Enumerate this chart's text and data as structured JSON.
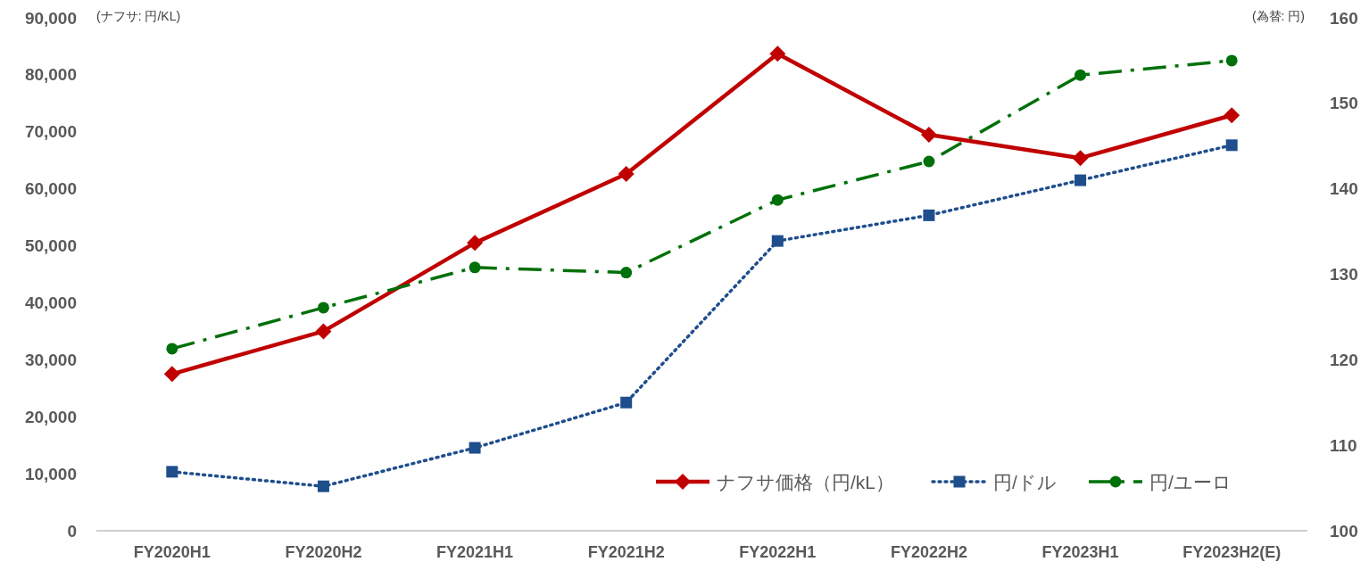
{
  "chart_data": {
    "type": "line",
    "categories": [
      "FY2020H1",
      "FY2020H2",
      "FY2021H1",
      "FY2021H2",
      "FY2022H1",
      "FY2022H2",
      "FY2023H1",
      "FY2023H2(E)"
    ],
    "ylabel": "(ナフサ: 円/KL)",
    "y2label": "(為替: 円)",
    "ylim": [
      0,
      90000
    ],
    "yticks": [
      {
        "value": 0,
        "label": "0"
      },
      {
        "value": 10000,
        "label": "10,000"
      },
      {
        "value": 20000,
        "label": "20,000"
      },
      {
        "value": 30000,
        "label": "30,000"
      },
      {
        "value": 40000,
        "label": "40,000"
      },
      {
        "value": 50000,
        "label": "50,000"
      },
      {
        "value": 60000,
        "label": "60,000"
      },
      {
        "value": 70000,
        "label": "70,000"
      },
      {
        "value": 80000,
        "label": "80,000"
      },
      {
        "value": 90000,
        "label": "90,000"
      }
    ],
    "y2lim": [
      100,
      160
    ],
    "y2ticks": [
      100,
      110,
      120,
      130,
      140,
      150,
      160
    ],
    "grid": false,
    "legend": "bottom right",
    "series": [
      {
        "name": "ナフサ価格（円/kL）",
        "color": "#c00000",
        "marker": "diamond",
        "line_style": "solid",
        "values": [
          27500,
          35000,
          50500,
          62600,
          83700,
          69500,
          65400,
          72900
        ]
      },
      {
        "name": "円/ドル",
        "color": "#1f4e8c",
        "marker": "square",
        "line_style": "dotted",
        "axis": "y2",
        "values": [
          106.9,
          105.2,
          109.7,
          115.0,
          133.9,
          136.9,
          141.0,
          145.1
        ]
      },
      {
        "name": "円/ユーロ",
        "color": "#00700a",
        "marker": "circle",
        "line_style": "dashdot",
        "axis": "y2",
        "values": [
          121.3,
          126.1,
          130.8,
          130.2,
          138.7,
          143.2,
          153.3,
          155.0
        ]
      }
    ]
  }
}
